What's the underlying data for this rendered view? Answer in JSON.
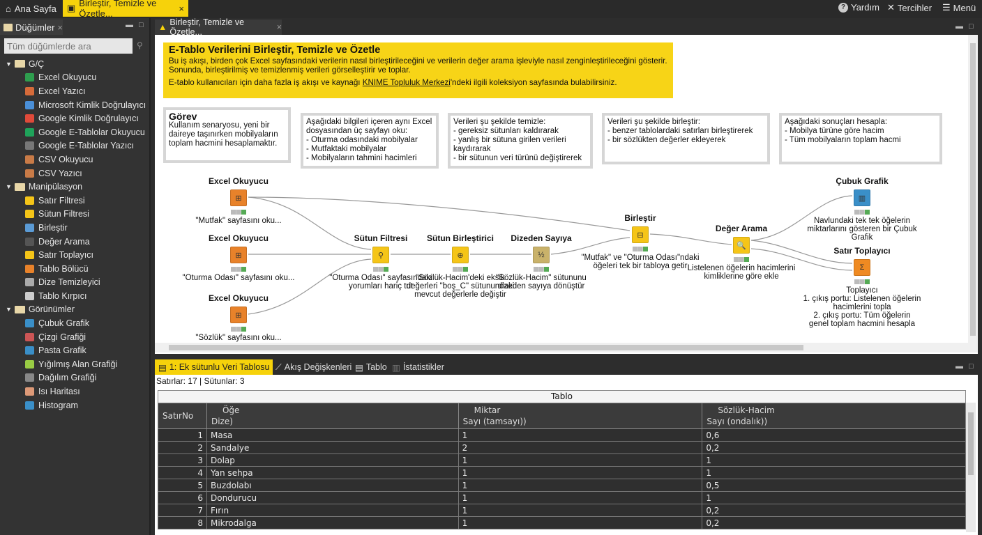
{
  "topbar": {
    "home": "Ana Sayfa",
    "active_tab": "Birleştir, Temizle ve Özetle...",
    "help": "Yardım",
    "prefs": "Tercihler",
    "menu": "Menü"
  },
  "nodes_panel": {
    "title": "Düğümler",
    "search_placeholder": "Tüm düğümlerde ara",
    "categories": [
      {
        "label": "G/Ç",
        "items": [
          "Excel Okuyucu",
          "Excel Yazıcı",
          "Microsoft Kimlik Doğrulayıcı",
          "Google Kimlik Doğrulayıcı",
          "Google E-Tablolar Okuyucu",
          "Google E-Tablolar Yazıcı",
          "CSV Okuyucu",
          "CSV Yazıcı"
        ]
      },
      {
        "label": "Manipülasyon",
        "items": [
          "Satır Filtresi",
          "Sütun Filtresi",
          "Birleştir",
          "Değer Arama",
          "Satır Toplayıcı",
          "Tablo Bölücü",
          "Dize Temizleyici",
          "Tablo Kırpıcı"
        ]
      },
      {
        "label": "Görünümler",
        "items": [
          "Çubuk Grafik",
          "Çizgi Grafiği",
          "Pasta Grafik",
          "Yığılmış Alan Grafiği",
          "Dağılım Grafiği",
          "Isı Haritası",
          "Histogram"
        ]
      }
    ]
  },
  "editor": {
    "tab": "Birleştir, Temizle ve Özetle...",
    "banner": {
      "title": "E-Tablo Verilerini Birleştir, Temizle ve Özetle",
      "line1": "Bu iş akışı, birden çok Excel sayfasındaki verilerin nasıl birleştirileceğini ve verilerin değer arama işleviyle nasıl zenginleştirileceğini gösterir.",
      "line2": "Sonunda, birleştirilmiş ve temizlenmiş verileri görselleştirir ve toplar.",
      "line3_pre": "E-tablo kullanıcıları için daha fazla iş akışı ve kaynağı ",
      "link": "KNIME Topluluk Merkezi",
      "line3_post": "'ndeki ilgili koleksiyon sayfasında bulabilirsiniz."
    },
    "notes": [
      {
        "title": "Görev",
        "text": "Kullanım senaryosu, yeni bir daireye taşınırken mobilyaların toplam hacmini hesaplamaktır."
      },
      {
        "text": "Aşağıdaki bilgileri içeren aynı Excel dosyasından üç sayfayı oku:\n- Oturma odasındaki mobilyalar\n- Mutfaktaki mobilyalar\n- Mobilyaların tahmini hacimleri"
      },
      {
        "text": "Verileri şu şekilde temizle:\n- gereksiz sütunları kaldırarak\n- yanlış bir sütuna girilen verileri kaydırarak\n- bir sütunun veri türünü değiştirerek"
      },
      {
        "text": "Verileri şu şekilde birleştir:\n- benzer tablolardaki satırları birleştirerek\n- bir sözlükten değerler ekleyerek"
      },
      {
        "text": "Aşağıdaki sonuçları hesapla:\n- Mobilya türüne göre hacim\n- Tüm mobilyaların toplam hacmi"
      }
    ],
    "nodes": [
      {
        "title": "Excel Okuyucu",
        "desc": "\"Mutfak\" sayfasını oku...",
        "color": "#e8822a"
      },
      {
        "title": "Excel Okuyucu",
        "desc": "\"Oturma Odası\" sayfasını oku...",
        "color": "#e8822a"
      },
      {
        "title": "Excel Okuyucu",
        "desc": "\"Sözlük\" sayfasını oku...",
        "color": "#e8822a"
      },
      {
        "title": "Sütun Filtresi",
        "desc": "\"Oturma Odası\" sayfasındaki yorumları hariç tut",
        "color": "#f5c518"
      },
      {
        "title": "Sütun Birleştirici",
        "desc": "\"Sözlük-Hacim'deki eksik değerleri \"boş_C\" sütunundaki mevcut değerlerle değiştir",
        "color": "#f5c518"
      },
      {
        "title": "Dizeden Sayıya",
        "desc": "\"Sözlük-Hacim\" sütununu dizeden sayıya dönüştür",
        "color": "#c9b26a"
      },
      {
        "title": "Birleştir",
        "desc": "\"Mutfak\" ve \"Oturma Odası\"ndaki öğeleri tek bir tabloya getir",
        "color": "#f5c518"
      },
      {
        "title": "Değer Arama",
        "desc": "Listelenen öğelerin hacimlerini kimliklerine göre ekle",
        "color": "#f5c518"
      },
      {
        "title": "Çubuk Grafik",
        "desc": "Navlundaki tek tek öğelerin miktarlarını gösteren bir Çubuk Grafik",
        "color": "#3a8fc8"
      },
      {
        "title": "Satır Toplayıcı",
        "desc": "Toplayıcı\n1. çıkış portu: Listelenen öğelerin hacimlerini topla\n2. çıkış portu: Tüm öğelerin genel toplam hacmini hesapla",
        "color": "#ef8a22"
      }
    ]
  },
  "results": {
    "tabs": [
      "1: Ek sütunlu Veri Tablosu",
      "Akış Değişkenleri",
      "Tablo",
      "İstatistikler"
    ],
    "status": "Satırlar: 17 | Sütunlar: 3",
    "table_title": "Tablo",
    "columns": [
      {
        "name": "SatırNo",
        "type": ""
      },
      {
        "name": "Öğe",
        "type": "Dize)"
      },
      {
        "name": "Miktar",
        "type": "Sayı (tamsayı))"
      },
      {
        "name": "Sözlük-Hacim",
        "type": "Sayı (ondalık))"
      }
    ],
    "rows": [
      [
        "1",
        "Masa",
        "1",
        "0,6"
      ],
      [
        "2",
        "Sandalye",
        "2",
        "0,2"
      ],
      [
        "3",
        "Dolap",
        "1",
        "1"
      ],
      [
        "4",
        "Yan sehpa",
        "1",
        "1"
      ],
      [
        "5",
        "Buzdolabı",
        "1",
        "0,5"
      ],
      [
        "6",
        "Dondurucu",
        "1",
        "1"
      ],
      [
        "7",
        "Fırın",
        "1",
        "0,2"
      ],
      [
        "8",
        "Mikrodalga",
        "1",
        "0,2"
      ]
    ]
  },
  "colors": {
    "accent": "#f6d20b",
    "dark": "#2d2d2d"
  }
}
